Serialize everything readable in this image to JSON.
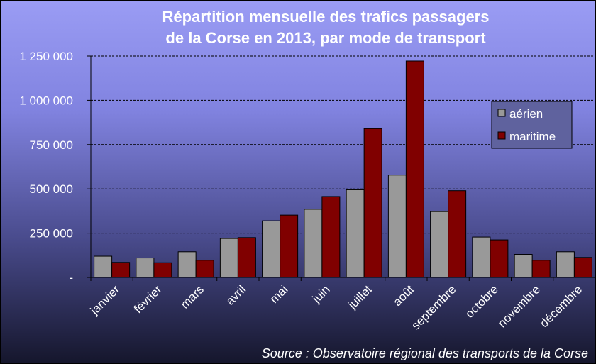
{
  "chart_data": {
    "type": "bar",
    "title_line1": "Répartition mensuelle des trafics passagers",
    "title_line2": "de la Corse en 2013, par mode de transport",
    "categories": [
      "janvier",
      "février",
      "mars",
      "avril",
      "mai",
      "juin",
      "juillet",
      "août",
      "septembre",
      "octobre",
      "novembre",
      "décembre"
    ],
    "series": [
      {
        "name": "aérien",
        "color": "#999999",
        "values": [
          120000,
          110000,
          145000,
          220000,
          320000,
          385000,
          495000,
          578000,
          372000,
          228000,
          130000,
          145000
        ]
      },
      {
        "name": "maritime",
        "color": "#800000",
        "values": [
          85000,
          83000,
          97000,
          225000,
          352000,
          457000,
          840000,
          1222000,
          490000,
          212000,
          97000,
          113000
        ]
      }
    ],
    "yticks": [
      0,
      250000,
      500000,
      750000,
      1000000,
      1250000
    ],
    "ytick_labels": [
      "-",
      "250 000",
      "500 000",
      "750 000",
      "1 000 000",
      "1 250 000"
    ],
    "ylim": [
      0,
      1250000
    ],
    "grid": true,
    "grid_style": "dashed",
    "legend_position": "right",
    "xlabel": "",
    "ylabel": "",
    "source": "Source : Observatoire régional des transports de la Corse"
  }
}
